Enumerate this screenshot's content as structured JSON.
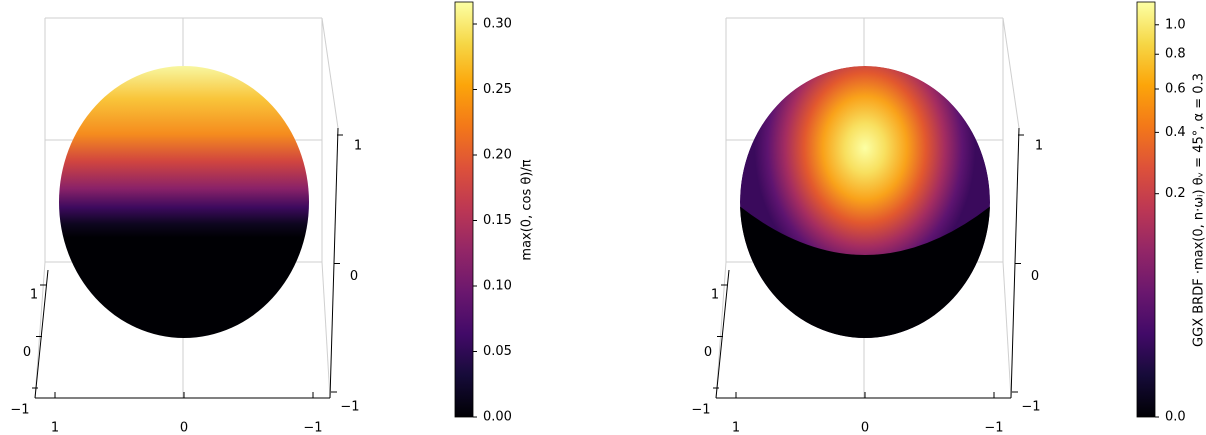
{
  "chart_data": [
    {
      "type": "surface",
      "xticks": [
        {
          "value": -1,
          "label": "−1"
        },
        0,
        1
      ],
      "yticks": [
        {
          "value": -1,
          "label": "−1"
        },
        0,
        1
      ],
      "zticks": [
        {
          "value": -1,
          "label": "−1"
        },
        0,
        1
      ],
      "colorbar": {
        "label": "max(0, cos θ)/π",
        "lim": [
          0,
          0.3168
        ],
        "scale": "linear",
        "ticks": [
          {
            "value": 0,
            "label": "0.00"
          },
          {
            "value": 0.05,
            "label": "0.05"
          },
          {
            "value": 0.1,
            "label": "0.10"
          },
          {
            "value": 0.15,
            "label": "0.15"
          },
          {
            "value": 0.2,
            "label": "0.20"
          },
          {
            "value": 0.25,
            "label": "0.25"
          },
          {
            "value": 0.3,
            "label": "0.30"
          }
        ]
      }
    },
    {
      "type": "surface",
      "xticks": [
        {
          "value": -1,
          "label": "−1"
        },
        0,
        1
      ],
      "yticks": [
        {
          "value": -1,
          "label": "−1"
        },
        0,
        1
      ],
      "zticks": [
        {
          "value": -1,
          "label": "−1"
        },
        0,
        1
      ],
      "colorbar": {
        "label": "GGX BRDF ·max(0, n·ωᵢ)  θᵥ = 45°,  α = 0.3",
        "lim": [
          0,
          1.175
        ],
        "scale": "power",
        "gamma": 0.35,
        "ticks": [
          {
            "value": 0,
            "label": "0.0"
          },
          0.2,
          0.4,
          0.6,
          0.8,
          {
            "value": 1,
            "label": "1.0"
          }
        ]
      }
    }
  ]
}
